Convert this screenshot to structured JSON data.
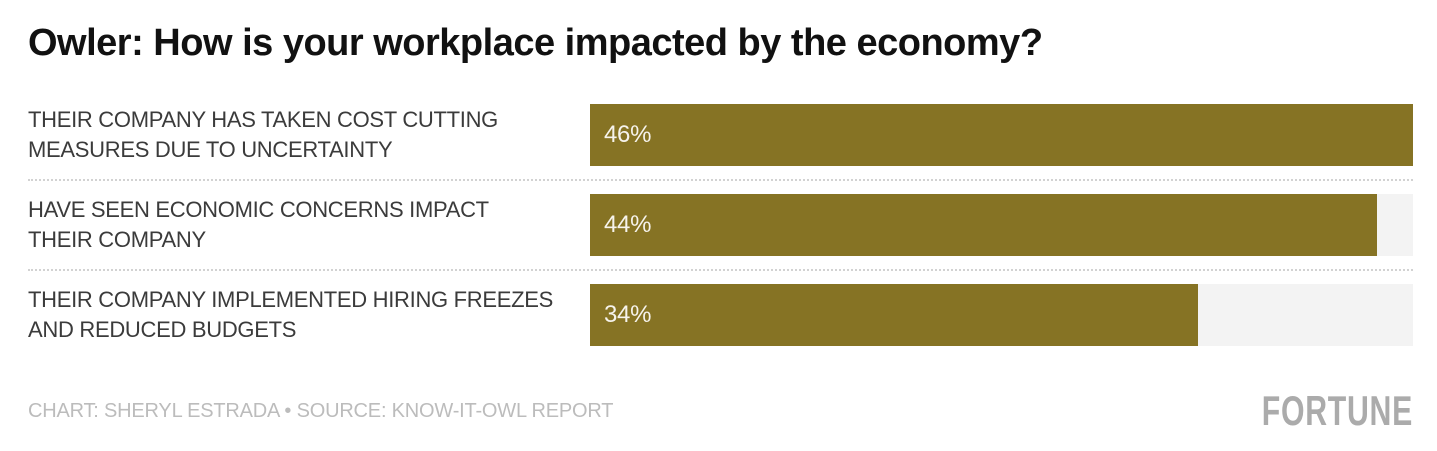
{
  "title": "Owler: How is your workplace impacted by the economy?",
  "chart_data": {
    "type": "bar",
    "orientation": "horizontal",
    "title": "Owler: How is your workplace impacted by the economy?",
    "categories": [
      "THEIR COMPANY HAS TAKEN COST CUTTING MEASURES DUE TO UNCERTAINTY",
      "HAVE SEEN ECONOMIC CONCERNS IMPACT THEIR COMPANY",
      "THEIR COMPANY IMPLEMENTED HIRING FREEZES AND REDUCED BUDGETS"
    ],
    "values": [
      46,
      44,
      34
    ],
    "value_labels": [
      "46%",
      "44%",
      "34%"
    ],
    "unit": "%",
    "max_value": 46,
    "xlim": [
      0,
      46
    ],
    "grid": false,
    "legend": false,
    "bar_color": "#867324",
    "track_color": "#f3f3f3",
    "value_label_color": "#f6f3ec"
  },
  "rows": [
    {
      "label": "THEIR COMPANY HAS TAKEN COST CUTTING\nMEASURES DUE TO UNCERTAINTY",
      "value_label": "46%"
    },
    {
      "label": "HAVE SEEN ECONOMIC CONCERNS IMPACT\nTHEIR COMPANY",
      "value_label": "44%"
    },
    {
      "label": "THEIR COMPANY IMPLEMENTED HIRING FREEZES\nAND REDUCED BUDGETS",
      "value_label": "34%"
    }
  ],
  "footer": {
    "credit": "CHART: SHERYL ESTRADA • SOURCE: KNOW-IT-OWL REPORT",
    "brand": "FORTUNE"
  }
}
